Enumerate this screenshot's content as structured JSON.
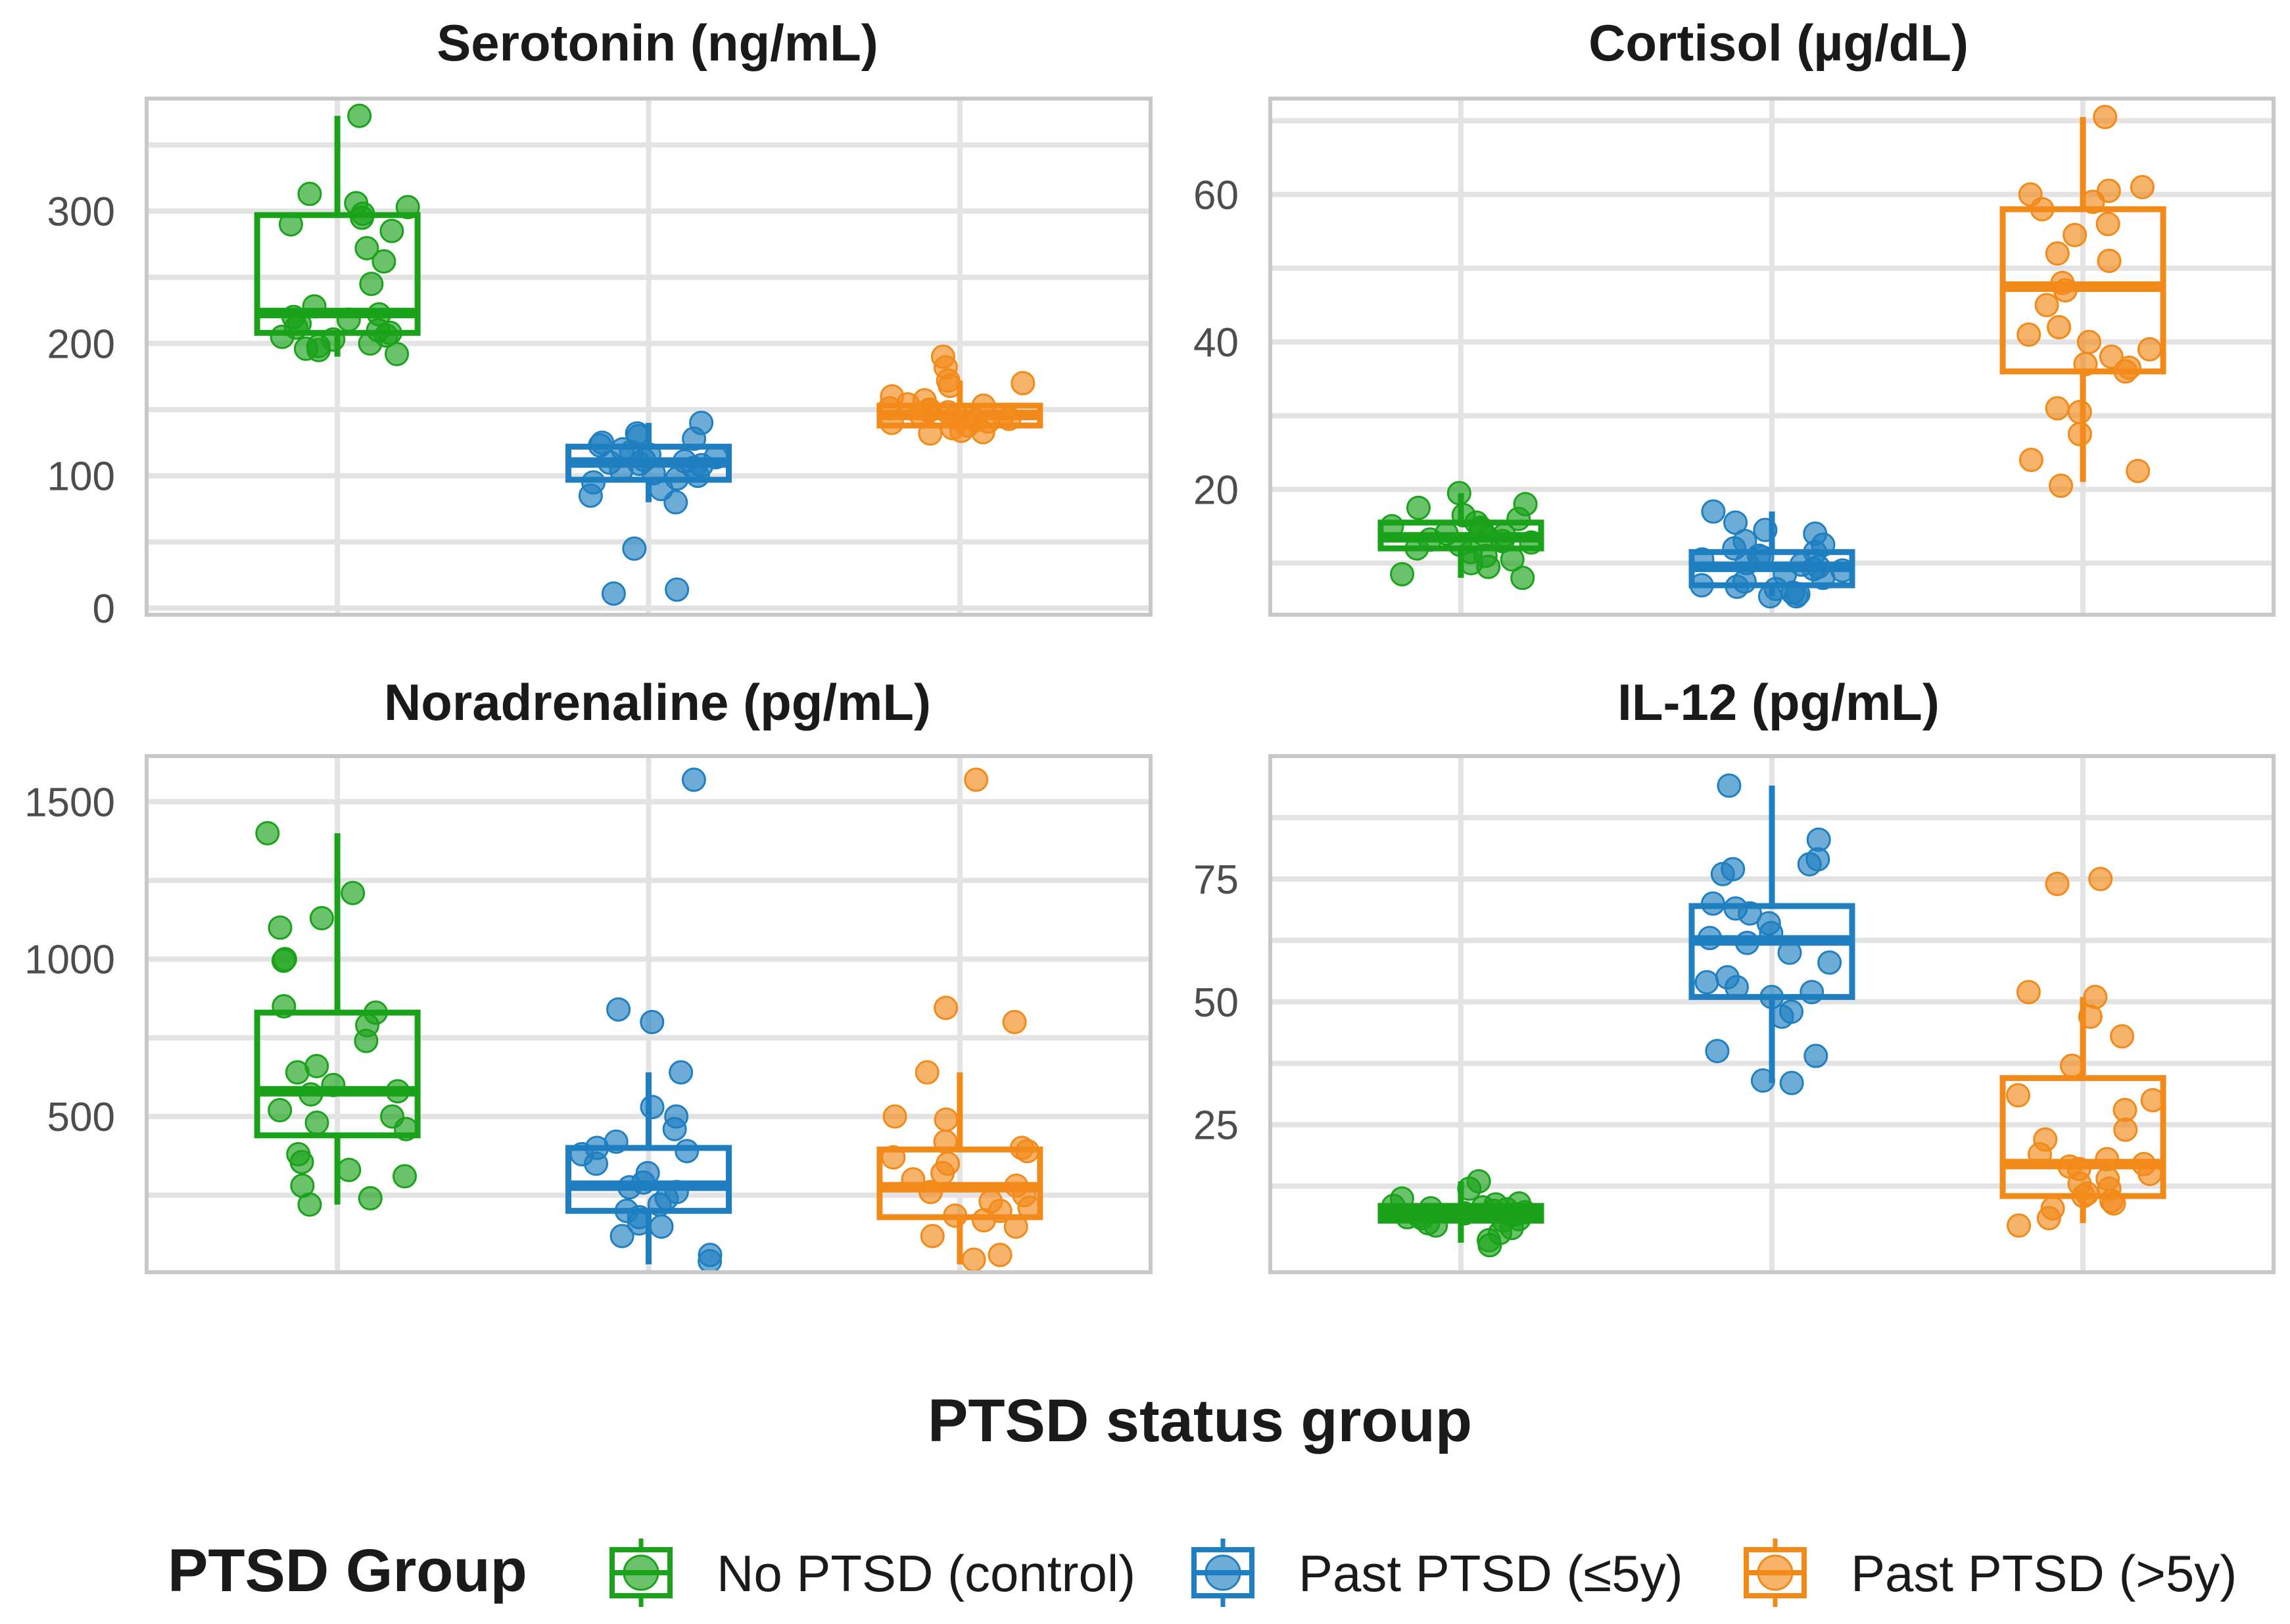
{
  "chart_data": {
    "type": "box",
    "x_title": "PTSD status group",
    "legend": {
      "title": "PTSD Group",
      "position": "bottom",
      "entries": [
        {
          "name": "No PTSD (control)",
          "color": "#1aa31a"
        },
        {
          "name": "Past PTSD (≤5y)",
          "color": "#1f7fc0"
        },
        {
          "name": "Past PTSD (>5y)",
          "color": "#f28a1a"
        }
      ]
    },
    "panels": [
      {
        "title": "Serotonin (ng/mL)",
        "ylim": [
          -5,
          385
        ],
        "yticks": [
          0,
          100,
          200,
          300
        ],
        "grid": true,
        "groups": [
          {
            "q1": 208,
            "median": 223,
            "q3": 297,
            "whisker_low": 190,
            "whisker_high": 372,
            "points": [
              372,
              313,
              306,
              303,
              298,
              295,
              290,
              285,
              272,
              262,
              245,
              228,
              222,
              220,
              218,
              215,
              212,
              210,
              208,
              206,
              205,
              203,
              200,
              198,
              196,
              195,
              192
            ]
          },
          {
            "q1": 97,
            "median": 110,
            "q3": 122,
            "whisker_low": 80,
            "whisker_high": 140,
            "points": [
              140,
              132,
              130,
              128,
              125,
              123,
              120,
              118,
              116,
              114,
              112,
              111,
              110,
              109,
              108,
              106,
              104,
              102,
              100,
              98,
              95,
              90,
              85,
              80,
              45,
              14,
              11
            ]
          },
          {
            "q1": 138,
            "median": 146,
            "q3": 153,
            "whisker_low": 132,
            "whisker_high": 172,
            "points": [
              190,
              182,
              172,
              170,
              168,
              160,
              157,
              154,
              153,
              151,
              150,
              149,
              148,
              147,
              146,
              145,
              144,
              143,
              142,
              141,
              140,
              138,
              136,
              134,
              133,
              132
            ]
          }
        ]
      },
      {
        "title": "Cortisol (µg/dL)",
        "ylim": [
          3,
          73
        ],
        "yticks": [
          20,
          40,
          60
        ],
        "grid": true,
        "groups": [
          {
            "q1": 12,
            "median": 13.5,
            "q3": 15.5,
            "whisker_low": 8,
            "whisker_high": 19.5,
            "points": [
              19.5,
              18,
              17.5,
              16.5,
              16,
              15.5,
              15,
              14.8,
              14.5,
              14,
              13.8,
              13.5,
              13.2,
              13,
              12.8,
              12.5,
              12,
              11.5,
              11,
              10.5,
              10,
              9.5,
              8.5,
              8
            ]
          },
          {
            "q1": 7,
            "median": 9.5,
            "q3": 11.5,
            "whisker_low": 5.5,
            "whisker_high": 17,
            "points": [
              17,
              15.5,
              14.5,
              14,
              13,
              12.5,
              12,
              11.5,
              11,
              10.8,
              10.5,
              10,
              9.8,
              9.5,
              9.2,
              9,
              8.5,
              8,
              7.5,
              7,
              6.8,
              6.5,
              6,
              5.8,
              5.5,
              5.5
            ]
          },
          {
            "q1": 36,
            "median": 47.5,
            "q3": 58,
            "whisker_low": 21,
            "whisker_high": 70.5,
            "points": [
              70.5,
              61,
              60.5,
              60,
              59,
              58,
              56,
              54.5,
              52,
              51,
              48,
              47,
              45,
              42,
              41,
              40,
              39,
              38,
              37,
              36.5,
              36,
              31,
              30.5,
              27.5,
              24,
              22.5,
              20.5
            ]
          }
        ]
      },
      {
        "title": "Noradrenaline (pg/mL)",
        "ylim": [
          5,
          1645
        ],
        "yticks": [
          500,
          1000,
          1500
        ],
        "grid": true,
        "groups": [
          {
            "q1": 440,
            "median": 580,
            "q3": 830,
            "whisker_low": 220,
            "whisker_high": 1400,
            "points": [
              1400,
              1210,
              1130,
              1100,
              1000,
              995,
              850,
              830,
              790,
              740,
              660,
              640,
              600,
              580,
              570,
              520,
              500,
              480,
              460,
              380,
              355,
              330,
              310,
              280,
              240,
              220
            ]
          },
          {
            "q1": 200,
            "median": 280,
            "q3": 400,
            "whisker_low": 30,
            "whisker_high": 640,
            "points": [
              1570,
              840,
              800,
              640,
              530,
              500,
              460,
              420,
              400,
              390,
              380,
              350,
              320,
              290,
              275,
              260,
              240,
              220,
              200,
              180,
              160,
              150,
              120,
              60,
              40
            ]
          },
          {
            "q1": 180,
            "median": 275,
            "q3": 395,
            "whisker_low": 30,
            "whisker_high": 640,
            "points": [
              1570,
              845,
              800,
              640,
              500,
              490,
              420,
              400,
              390,
              370,
              350,
              320,
              300,
              280,
              260,
              250,
              230,
              210,
              200,
              185,
              170,
              150,
              120,
              60,
              45
            ]
          }
        ]
      },
      {
        "title": "IL-12 (pg/mL)",
        "ylim": [
          -5,
          100
        ],
        "yticks": [
          25,
          50,
          75
        ],
        "grid": true,
        "groups": [
          {
            "q1": 5.5,
            "median": 7,
            "q3": 8.5,
            "whisker_low": 1,
            "whisker_high": 13.5,
            "points": [
              13.5,
              12,
              10,
              9,
              8.8,
              8.5,
              8.2,
              8,
              7.8,
              7.5,
              7.2,
              7,
              6.8,
              6.5,
              6.2,
              6,
              5.8,
              5.5,
              5,
              4.5,
              4,
              3,
              1.5,
              0.5
            ]
          },
          {
            "q1": 51,
            "median": 62.5,
            "q3": 69.5,
            "whisker_low": 33.5,
            "whisker_high": 94,
            "points": [
              94,
              83,
              79,
              78,
              77,
              76,
              70,
              69,
              68,
              66,
              64,
              63,
              62,
              60,
              58,
              55,
              54,
              53,
              52,
              51,
              48,
              47,
              40,
              39,
              34,
              33.5
            ]
          },
          {
            "q1": 10.5,
            "median": 17,
            "q3": 34.5,
            "whisker_low": 5,
            "whisker_high": 51,
            "points": [
              75,
              74,
              52,
              51,
              47,
              43,
              37,
              31,
              30,
              28,
              24,
              22,
              19,
              18,
              17,
              16.5,
              16,
              15,
              14,
              13,
              12,
              11,
              10.5,
              9.5,
              9,
              8,
              6,
              4.5
            ]
          }
        ]
      }
    ]
  }
}
